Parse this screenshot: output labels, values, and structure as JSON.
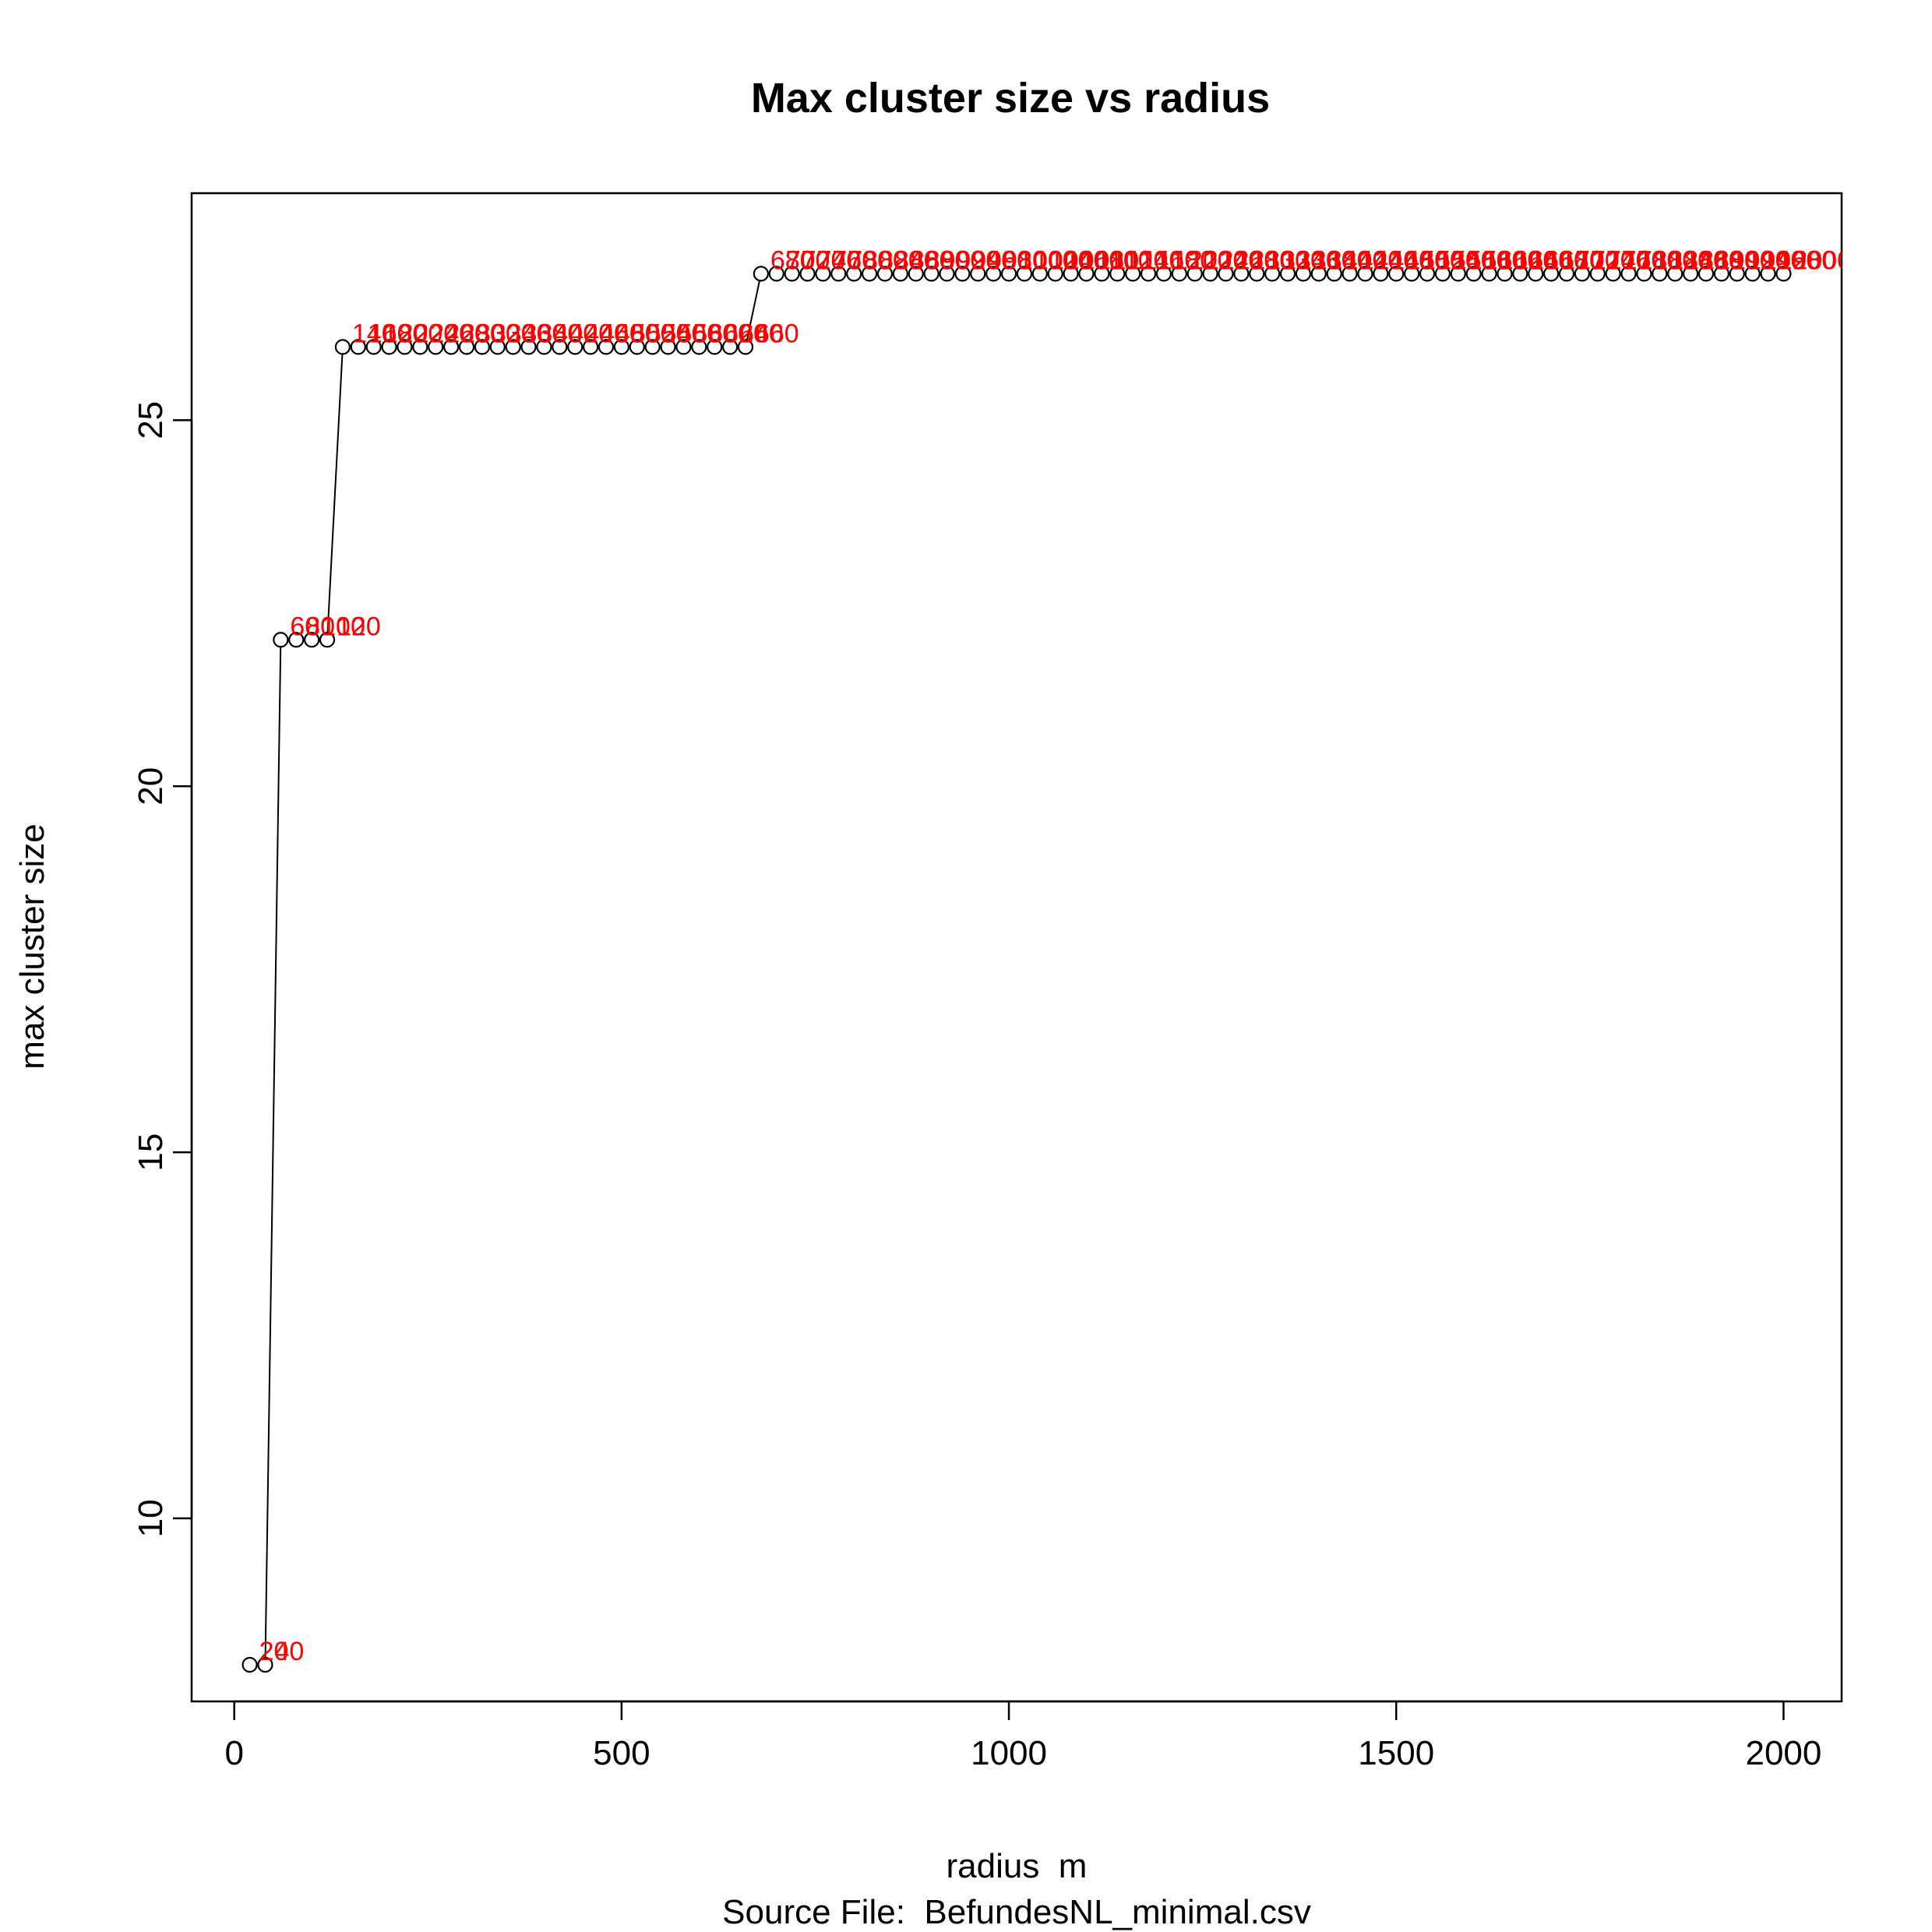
{
  "chart_data": {
    "type": "line",
    "title": "Max cluster size vs radius",
    "xlabel": "radius  m",
    "ylabel": "max cluster size",
    "subtitle": "Source File:  BefundesNL_minimal.csv",
    "xlim": [
      -55,
      2075
    ],
    "ylim": [
      7.5,
      28.1
    ],
    "x_ticks": [
      0,
      500,
      1000,
      1500,
      2000
    ],
    "y_ticks": [
      10,
      15,
      20,
      25
    ],
    "grid": false,
    "point_style": "open-circle",
    "label_color": "#ff0000",
    "line_color": "#000000",
    "segments": [
      {
        "from": 20,
        "to": 40,
        "step": 20,
        "value": 8
      },
      {
        "from": 60,
        "to": 120,
        "step": 20,
        "value": 22
      },
      {
        "from": 140,
        "to": 660,
        "step": 20,
        "value": 26
      },
      {
        "from": 680,
        "to": 2000,
        "step": 20,
        "value": 27
      }
    ]
  }
}
